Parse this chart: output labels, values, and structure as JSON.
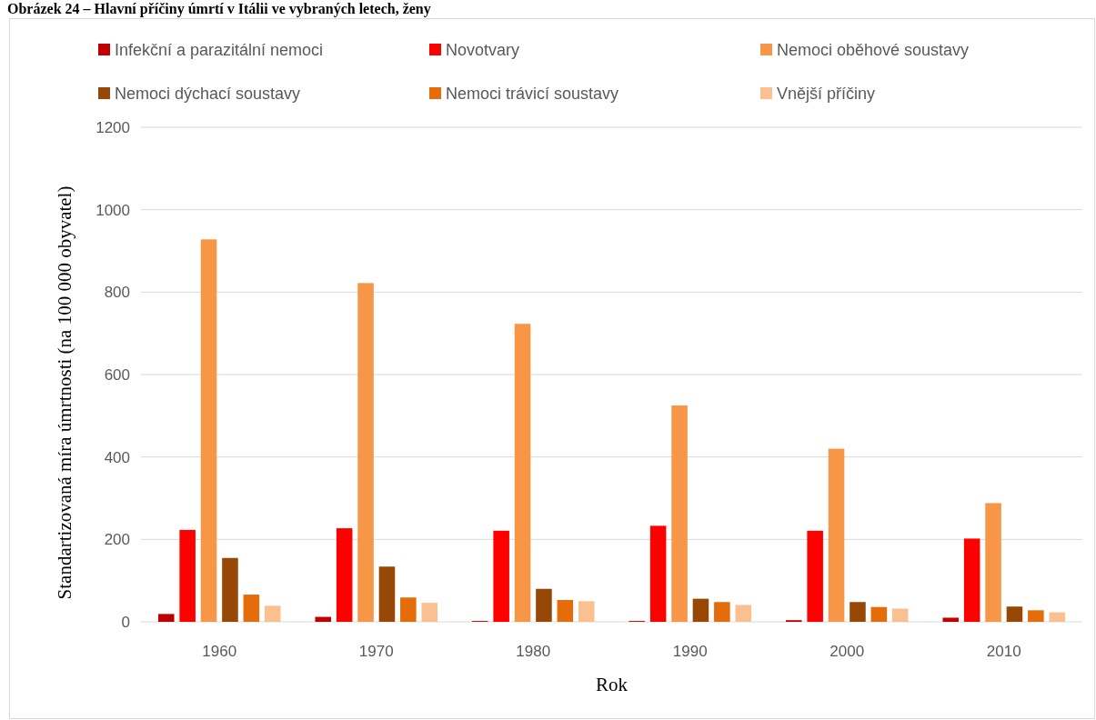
{
  "chart_data": {
    "type": "bar",
    "title": "Obrázek 24 – Hlavní příčiny úmrtí v Itálii ve vybraných letech, ženy",
    "xlabel": "Rok",
    "ylabel": "Standartizovaná míra úmrtnosti (na 100 000 obyvatel)",
    "categories": [
      "1960",
      "1970",
      "1980",
      "1990",
      "2000",
      "2010"
    ],
    "series": [
      {
        "name": "Infekční a parazitální nemoci",
        "color": "#c00000",
        "values": [
          19,
          12,
          2,
          2,
          4,
          10
        ]
      },
      {
        "name": "Novotvary",
        "color": "#ff0000",
        "values": [
          223,
          227,
          221,
          233,
          221,
          202
        ]
      },
      {
        "name": "Nemoci oběhové soustavy",
        "color": "#f79646",
        "values": [
          928,
          822,
          723,
          525,
          420,
          288
        ]
      },
      {
        "name": "Nemoci dýchací soustavy",
        "color": "#974706",
        "values": [
          155,
          134,
          80,
          56,
          48,
          37
        ]
      },
      {
        "name": "Nemoci trávicí soustavy",
        "color": "#e46c0a",
        "values": [
          66,
          59,
          53,
          48,
          36,
          28
        ]
      },
      {
        "name": "Vnější příčiny",
        "color": "#fac090",
        "values": [
          39,
          46,
          50,
          41,
          32,
          23
        ]
      }
    ],
    "ylim": [
      0,
      1200
    ],
    "yticks": [
      0,
      200,
      400,
      600,
      800,
      1000,
      1200
    ],
    "grid": "y",
    "legend": "top"
  }
}
